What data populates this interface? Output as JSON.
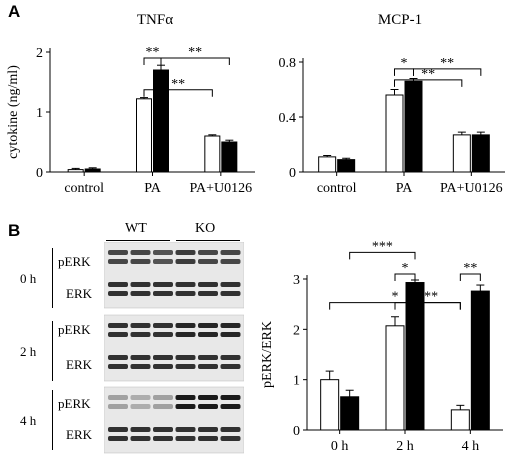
{
  "panel_labels": {
    "a": "A",
    "b": "B"
  },
  "blot": {
    "genotypes": [
      "WT",
      "KO"
    ],
    "times": [
      "0 h",
      "2 h",
      "4 h"
    ],
    "rows": [
      "pERK",
      "ERK"
    ],
    "intensity": {
      "0 h": {
        "pERK": [
          0.75,
          0.75,
          0.7,
          0.8,
          0.75,
          0.75
        ],
        "ERK": [
          0.85,
          0.85,
          0.85,
          0.85,
          0.85,
          0.85
        ]
      },
      "2 h": {
        "pERK": [
          0.85,
          0.85,
          0.85,
          0.9,
          0.9,
          0.9
        ],
        "ERK": [
          0.85,
          0.85,
          0.85,
          0.85,
          0.85,
          0.85
        ]
      },
      "4 h": {
        "pERK": [
          0.35,
          0.3,
          0.35,
          0.95,
          0.95,
          0.95
        ],
        "ERK": [
          0.85,
          0.85,
          0.85,
          0.85,
          0.85,
          0.85
        ]
      }
    }
  },
  "chart_data": [
    {
      "type": "bar",
      "title": "TNFα",
      "ylabel": "cytokine (ng/ml)",
      "ylim": [
        0,
        2
      ],
      "yticks": [
        "0",
        "1",
        "2"
      ],
      "categories": [
        "control",
        "PA",
        "PA+U0126"
      ],
      "series": [
        {
          "color": "#ffffff",
          "values": [
            0.04,
            1.22,
            0.6
          ],
          "errors": [
            0.02,
            0.02,
            0.02
          ]
        },
        {
          "color": "#000000",
          "values": [
            0.05,
            1.7,
            0.5
          ],
          "errors": [
            0.02,
            0.08,
            0.03
          ]
        }
      ],
      "significance": [
        {
          "from": [
            1,
            0
          ],
          "to": [
            1,
            1
          ],
          "level": 1.9,
          "label": "**"
        },
        {
          "from": [
            1,
            1
          ],
          "to": [
            2,
            1
          ],
          "level": 1.9,
          "label": "**"
        },
        {
          "from": [
            1,
            0
          ],
          "to": [
            2,
            0
          ],
          "level": 1.37,
          "label": "**"
        }
      ]
    },
    {
      "type": "bar",
      "title": "MCP-1",
      "ylabel": "",
      "ylim": [
        0,
        0.8
      ],
      "yticks": [
        "0",
        "0.4",
        "0.8"
      ],
      "categories": [
        "control",
        "PA",
        "PA+U0126"
      ],
      "series": [
        {
          "color": "#ffffff",
          "values": [
            0.11,
            0.56,
            0.27
          ],
          "errors": [
            0.01,
            0.04,
            0.02
          ]
        },
        {
          "color": "#000000",
          "values": [
            0.09,
            0.66,
            0.27
          ],
          "errors": [
            0.01,
            0.02,
            0.02
          ]
        }
      ],
      "significance": [
        {
          "from": [
            1,
            0
          ],
          "to": [
            1,
            1
          ],
          "level": 0.75,
          "label": "*"
        },
        {
          "from": [
            1,
            1
          ],
          "to": [
            2,
            1
          ],
          "level": 0.75,
          "label": "**"
        },
        {
          "from": [
            1,
            0
          ],
          "to": [
            2,
            0
          ],
          "level": 0.67,
          "label": "**"
        }
      ]
    },
    {
      "type": "bar",
      "title": "",
      "ylabel": "pERK/ERK",
      "ylim": [
        0,
        3
      ],
      "yticks": [
        "0",
        "1",
        "2",
        "3"
      ],
      "categories": [
        "0 h",
        "2 h",
        "4 h"
      ],
      "series": [
        {
          "color": "#ffffff",
          "values": [
            1.0,
            2.07,
            0.4
          ],
          "errors": [
            0.17,
            0.18,
            0.09
          ]
        },
        {
          "color": "#000000",
          "values": [
            0.66,
            2.93,
            2.76
          ],
          "errors": [
            0.13,
            0.05,
            0.12
          ]
        }
      ],
      "significance": [
        {
          "from": [
            0,
            0
          ],
          "to": [
            2,
            0
          ],
          "level": 2.53,
          "label": "*"
        },
        {
          "from": [
            1,
            0
          ],
          "to": [
            2,
            0
          ],
          "level": 2.53,
          "label": "***"
        },
        {
          "from": [
            1,
            0
          ],
          "to": [
            1,
            1
          ],
          "level": 3.1,
          "label": "*"
        },
        {
          "from": [
            0,
            1
          ],
          "to": [
            1,
            1
          ],
          "level": 3.53,
          "label": "***"
        },
        {
          "from": [
            2,
            0
          ],
          "to": [
            2,
            1
          ],
          "level": 3.1,
          "label": "**"
        }
      ]
    }
  ]
}
